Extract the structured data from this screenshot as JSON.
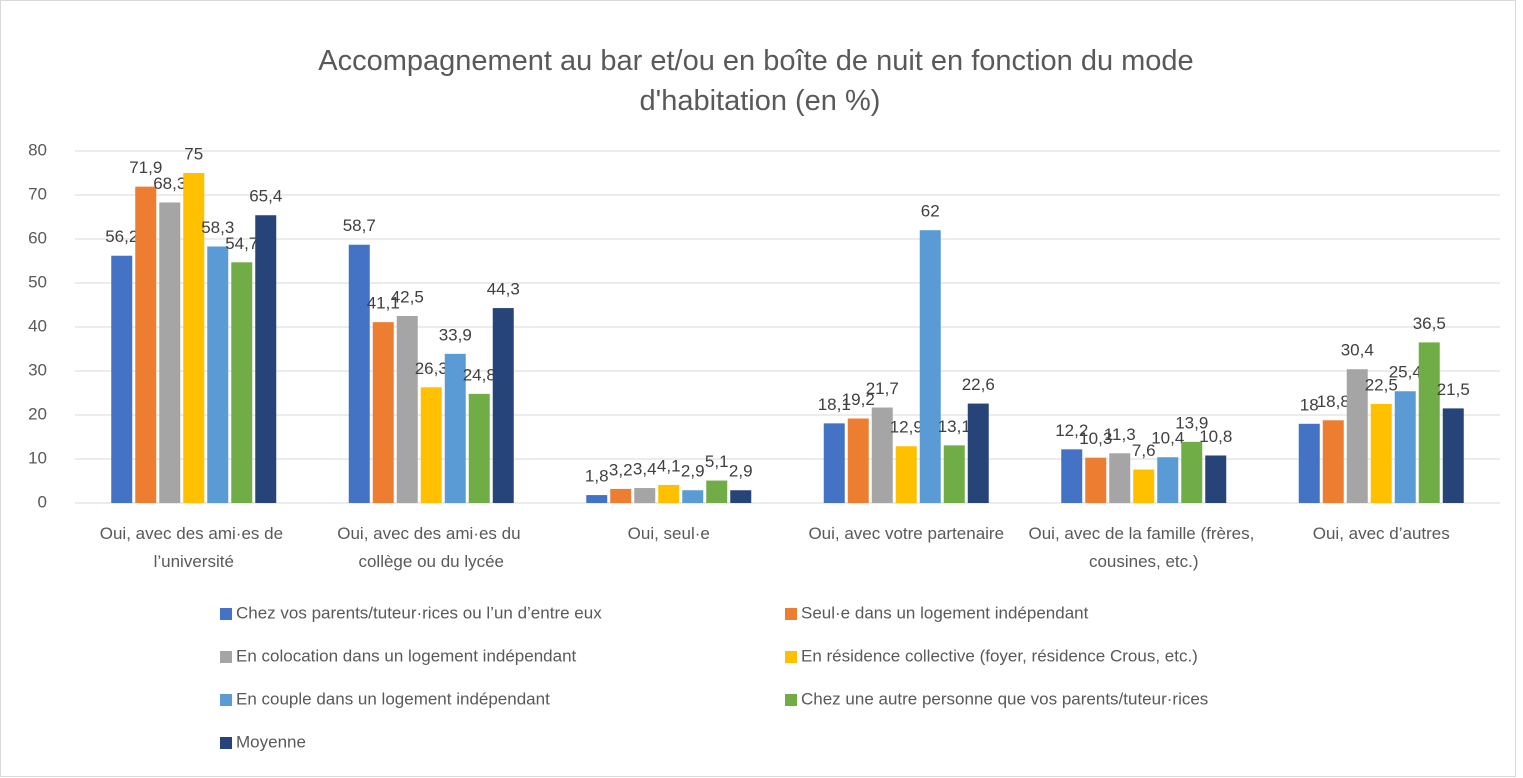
{
  "chart_data": {
    "type": "bar",
    "title": "Accompagnement au bar et/ou en boîte de nuit en fonction du mode d'habitation (en %)",
    "categories": [
      "Oui, avec des ami·es de l’université",
      "Oui, avec des ami·es du collège ou du lycée",
      "Oui, seul·e",
      "Oui, avec votre partenaire",
      "Oui, avec de la famille (frères, cousines, etc.)",
      "Oui, avec d’autres"
    ],
    "series": [
      {
        "name": "Chez vos parents/tuteur·rices ou l’un d’entre eux",
        "color": "#4472c4",
        "values": [
          56.2,
          58.7,
          1.8,
          18.1,
          12.2,
          18
        ],
        "value_labels": [
          "56,2",
          "58,7",
          "1,8",
          "18,1",
          "12,2",
          "18"
        ]
      },
      {
        "name": "Seul·e dans un logement indépendant",
        "color": "#ed7d31",
        "values": [
          71.9,
          41.1,
          3.2,
          19.2,
          10.3,
          18.8
        ],
        "value_labels": [
          "71,9",
          "41,1",
          "3,2",
          "19,2",
          "10,3",
          "18,8"
        ]
      },
      {
        "name": "En colocation dans un logement indépendant",
        "color": "#a5a5a5",
        "values": [
          68.3,
          42.5,
          3.4,
          21.7,
          11.3,
          30.4
        ],
        "value_labels": [
          "68,3",
          "42,5",
          "3,4",
          "21,7",
          "11,3",
          "30,4"
        ]
      },
      {
        "name": "En résidence collective (foyer, résidence Crous, etc.)",
        "color": "#ffc000",
        "values": [
          75,
          26.3,
          4.1,
          12.9,
          7.6,
          22.5
        ],
        "value_labels": [
          "75",
          "26,3",
          "4,1",
          "12,9",
          "7,6",
          "22,5"
        ]
      },
      {
        "name": "En couple dans un logement indépendant",
        "color": "#5b9bd5",
        "values": [
          58.3,
          33.9,
          2.9,
          62,
          10.4,
          25.4
        ],
        "value_labels": [
          "58,3",
          "33,9",
          "2,9",
          "62",
          "10,4",
          "25,4"
        ]
      },
      {
        "name": "Chez une autre personne que vos parents/tuteur·rices",
        "color": "#70ad47",
        "values": [
          54.7,
          24.8,
          5.1,
          13.1,
          13.9,
          36.5
        ],
        "value_labels": [
          "54,7",
          "24,8",
          "5,1",
          "13,1",
          "13,9",
          "36,5"
        ]
      },
      {
        "name": "Moyenne",
        "color": "#264478",
        "values": [
          65.4,
          44.3,
          2.9,
          22.6,
          10.8,
          21.5
        ],
        "value_labels": [
          "65,4",
          "44,3",
          "2,9",
          "22,6",
          "10,8",
          "21,5"
        ]
      }
    ],
    "ylim": [
      0,
      80
    ],
    "yticks": [
      0,
      10,
      20,
      30,
      40,
      50,
      60,
      70,
      80
    ],
    "grid": true,
    "legend": "bottom"
  }
}
